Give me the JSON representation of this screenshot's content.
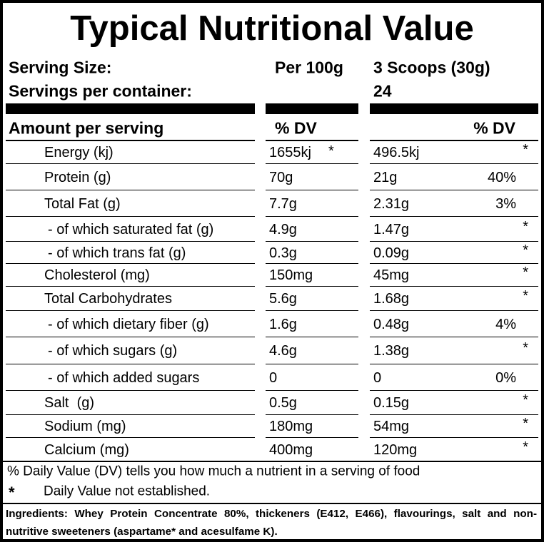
{
  "title": "Typical Nutritional Value",
  "serving": {
    "size_label": "Serving Size:",
    "per_100g_label": "Per 100g",
    "serving_label": "3 Scoops (30g)",
    "servings_label": "Servings per container:",
    "servings_value": "24"
  },
  "table": {
    "header": {
      "amount": "Amount per serving",
      "dv_100g": "% DV",
      "dv_serving": "% DV"
    },
    "rows": [
      {
        "name": "Energy (kj)",
        "per_100g": "1655kj",
        "per_100g_note": "*",
        "per_serving": "496.5kj",
        "dv": "*"
      },
      {
        "name": "Protein (g)",
        "per_100g": "70g",
        "per_serving": "21g",
        "dv": "40%"
      },
      {
        "name": "Total Fat (g)",
        "per_100g": "7.7g",
        "per_serving": "2.31g",
        "dv": "3%"
      },
      {
        "name": "- of which saturated fat (g)",
        "per_100g": "4.9g",
        "per_serving": "1.47g",
        "dv": "*"
      },
      {
        "name": "- of which trans fat (g)",
        "per_100g": "0.3g",
        "per_serving": "0.09g",
        "dv": "*"
      },
      {
        "name": "Cholesterol (mg)",
        "per_100g": "150mg",
        "per_serving": "45mg",
        "dv": "*"
      },
      {
        "name": "Total Carbohydrates",
        "per_100g": "5.6g",
        "per_serving": "1.68g",
        "dv": "*"
      },
      {
        "name": "- of which dietary fiber (g)",
        "per_100g": "1.6g",
        "per_serving": "0.48g",
        "dv": "4%"
      },
      {
        "name": "- of which sugars (g)",
        "per_100g": "4.6g",
        "per_serving": "1.38g",
        "dv": "*"
      },
      {
        "name": "- of which added sugars",
        "per_100g": "0",
        "per_serving": "0",
        "dv": "0%"
      },
      {
        "name": "Salt  (g)",
        "per_100g": "0.5g",
        "per_serving": "0.15g",
        "dv": "*"
      },
      {
        "name": "Sodium (mg)",
        "per_100g": "180mg",
        "per_serving": "54mg",
        "dv": "*"
      },
      {
        "name": "Calcium (mg)",
        "per_100g": "400mg",
        "per_serving": "120mg",
        "dv": "*"
      }
    ]
  },
  "footnotes": {
    "dv_note": "% Daily Value (DV) tells you how much a nutrient in a serving of food",
    "star": "*",
    "star_note": "Daily Value not established."
  },
  "ingredients": "Ingredients: Whey Protein Concentrate 80%, thickeners (E412, E466), flavourings, salt and non-nutritive sweeteners (aspartame* and acesulfame K)."
}
